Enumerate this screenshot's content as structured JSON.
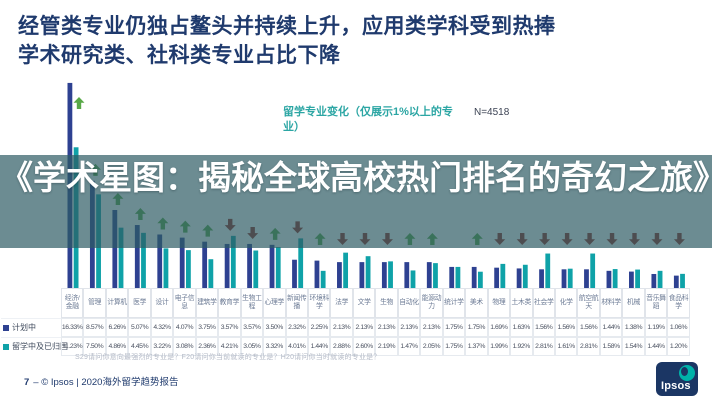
{
  "header": {
    "title_line1": "经管类专业仍独占鳌头并持续上升，应用类学科受到热捧",
    "title_line2": "学术研究类、社科类专业占比下降"
  },
  "overlay_banner": {
    "text": "《学术星图：揭秘全球高校热门排名的奇幻之旅》"
  },
  "chart_data": {
    "type": "bar",
    "title": "留学专业变化（仅展示1%以上的专业）",
    "sample_size": "N=4518",
    "unit": "percent",
    "ylim": [
      0,
      17
    ],
    "grid": false,
    "legend_position": "table-row-labels",
    "categories": [
      "经济/金融",
      "管理",
      "计算机",
      "医学",
      "设计",
      "电子信息",
      "建筑学",
      "教育学",
      "生物工程",
      "心理学",
      "新闻传播",
      "环境科学",
      "法学",
      "文学",
      "生物",
      "自动化",
      "能源动力",
      "统计学",
      "美术",
      "物理",
      "土木类",
      "社会学",
      "化学",
      "航空航天",
      "材料学",
      "机械",
      "音乐舞蹈",
      "食品科学"
    ],
    "series": [
      {
        "name": "计划中",
        "color": "#2e4191",
        "values": [
          16.33,
          8.57,
          6.26,
          5.07,
          4.32,
          4.07,
          3.75,
          3.57,
          3.57,
          3.5,
          2.32,
          2.25,
          2.13,
          2.13,
          2.13,
          2.13,
          2.13,
          1.75,
          1.75,
          1.69,
          1.63,
          1.56,
          1.56,
          1.56,
          1.44,
          1.38,
          1.19,
          1.06
        ]
      },
      {
        "name": "留学中及已归国",
        "color": "#0fa2a8",
        "values": [
          11.23,
          7.5,
          4.86,
          4.45,
          3.22,
          3.08,
          2.36,
          4.21,
          3.05,
          3.32,
          4.01,
          1.44,
          2.88,
          2.6,
          2.19,
          1.47,
          2.05,
          1.75,
          1.37,
          1.99,
          1.92,
          2.81,
          1.61,
          2.81,
          1.58,
          1.54,
          1.44,
          1.2
        ]
      }
    ],
    "trend_arrows": [
      "up",
      "up",
      "up",
      "up",
      "up",
      "up",
      "up",
      "down",
      "down",
      "up",
      "down",
      "up",
      "down",
      "down",
      "down",
      "up",
      "up",
      "none",
      "up",
      "down",
      "down",
      "down",
      "down",
      "down",
      "down",
      "down",
      "down",
      "down"
    ]
  },
  "footnote": "S29请问你意向最强烈的专业是？F20请问你当前就读的专业是？H20请问你当时就读的专业是？",
  "footer": {
    "page_number": "7",
    "separator": "–",
    "copyright": "© Ipsos | 2020海外留学趋势报告",
    "logo_text": "Ipsos"
  },
  "colors": {
    "title_navy": "#1f3a6d",
    "legend_teal": "#2ca6a4",
    "overlay_band": "rgba(45,91,100,0.70)",
    "bar_planned": "#2e4191",
    "bar_current": "#0fa2a8",
    "up_arrow": "#58a847",
    "down_arrow": "#962d22",
    "logo_navy": "#1b3664",
    "logo_teal": "#00b2a9"
  }
}
